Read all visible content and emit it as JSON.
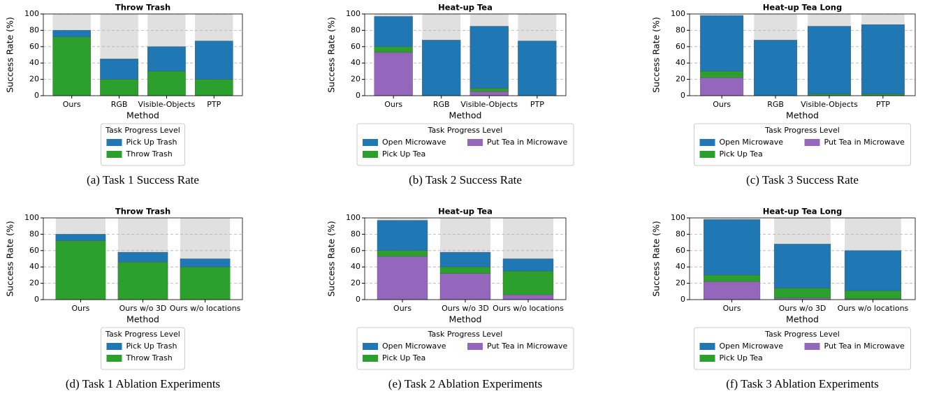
{
  "chart_data": [
    {
      "type": "bar",
      "title": "Throw Trash",
      "xlabel": "Method",
      "ylabel": "Success Rate (%)",
      "legend_title": "Task Progress Level",
      "caption": "(a) Task 1 Success Rate",
      "categories": [
        "Ours",
        "RGB",
        "Visible-Objects",
        "PTP"
      ],
      "series": [
        {
          "name": "Pick Up Trash",
          "color": "#1f77b4",
          "values": [
            8,
            25,
            30,
            47
          ]
        },
        {
          "name": "Throw Trash",
          "color": "#2ca02c",
          "values": [
            72,
            20,
            30,
            20
          ]
        }
      ],
      "ylim": [
        0,
        100
      ],
      "yticks": [
        0,
        20,
        40,
        60,
        80,
        100
      ],
      "grid": true
    },
    {
      "type": "bar",
      "title": "Heat-up Tea",
      "xlabel": "Method",
      "ylabel": "Success Rate (%)",
      "legend_title": "Task Progress Level",
      "caption": "(b) Task 2 Success Rate",
      "categories": [
        "Ours",
        "RGB",
        "Visible-Objects",
        "PTP"
      ],
      "series": [
        {
          "name": "Open Microwave",
          "color": "#1f77b4",
          "values": [
            37,
            68,
            76,
            67
          ]
        },
        {
          "name": "Pick Up Tea",
          "color": "#2ca02c",
          "values": [
            7,
            0,
            4,
            0
          ]
        },
        {
          "name": "Put Tea in Microwave",
          "color": "#9467bd",
          "values": [
            53,
            0,
            5,
            0
          ]
        }
      ],
      "ylim": [
        0,
        100
      ],
      "yticks": [
        0,
        20,
        40,
        60,
        80,
        100
      ],
      "grid": true
    },
    {
      "type": "bar",
      "title": "Heat-up Tea Long",
      "xlabel": "Method",
      "ylabel": "Success Rate (%)",
      "legend_title": "Task Progress Level",
      "caption": "(c) Task 3 Success Rate",
      "categories": [
        "Ours",
        "RGB",
        "Visible-Objects",
        "PTP"
      ],
      "series": [
        {
          "name": "Open Microwave",
          "color": "#1f77b4",
          "values": [
            68,
            68,
            83,
            85
          ]
        },
        {
          "name": "Pick Up Tea",
          "color": "#2ca02c",
          "values": [
            8,
            0,
            2,
            2
          ]
        },
        {
          "name": "Put Tea in Microwave",
          "color": "#9467bd",
          "values": [
            22,
            0,
            0,
            0
          ]
        }
      ],
      "ylim": [
        0,
        100
      ],
      "yticks": [
        0,
        20,
        40,
        60,
        80,
        100
      ],
      "grid": true
    },
    {
      "type": "bar",
      "title": "Throw Trash",
      "xlabel": "Method",
      "ylabel": "Success Rate (%)",
      "legend_title": "Task Progress Level",
      "caption": "(d) Task 1 Ablation Experiments",
      "categories": [
        "Ours",
        "Ours w/o 3D",
        "Ours w/o locations"
      ],
      "series": [
        {
          "name": "Pick Up Trash",
          "color": "#1f77b4",
          "values": [
            8,
            12,
            10
          ]
        },
        {
          "name": "Throw Trash",
          "color": "#2ca02c",
          "values": [
            72,
            46,
            40
          ]
        }
      ],
      "ylim": [
        0,
        100
      ],
      "yticks": [
        0,
        20,
        40,
        60,
        80,
        100
      ],
      "grid": true
    },
    {
      "type": "bar",
      "title": "Heat-up Tea",
      "xlabel": "Method",
      "ylabel": "Success Rate (%)",
      "legend_title": "Task Progress Level",
      "caption": "(e) Task 2 Ablation Experiments",
      "categories": [
        "Ours",
        "Ours w/o 3D",
        "Ours w/o locations"
      ],
      "series": [
        {
          "name": "Open Microwave",
          "color": "#1f77b4",
          "values": [
            37,
            18,
            15
          ]
        },
        {
          "name": "Pick Up Tea",
          "color": "#2ca02c",
          "values": [
            7,
            8,
            29
          ]
        },
        {
          "name": "Put Tea in Microwave",
          "color": "#9467bd",
          "values": [
            53,
            32,
            6
          ]
        }
      ],
      "ylim": [
        0,
        100
      ],
      "yticks": [
        0,
        20,
        40,
        60,
        80,
        100
      ],
      "grid": true
    },
    {
      "type": "bar",
      "title": "Heat-up Tea Long",
      "xlabel": "Method",
      "ylabel": "Success Rate (%)",
      "legend_title": "Task Progress Level",
      "caption": "(f) Task 3 Ablation Experiments",
      "categories": [
        "Ours",
        "Ours w/o 3D",
        "Ours w/o locations"
      ],
      "series": [
        {
          "name": "Open Microwave",
          "color": "#1f77b4",
          "values": [
            68,
            54,
            49
          ]
        },
        {
          "name": "Pick Up Tea",
          "color": "#2ca02c",
          "values": [
            8,
            12,
            10
          ]
        },
        {
          "name": "Put Tea in Microwave",
          "color": "#9467bd",
          "values": [
            22,
            2,
            1
          ]
        }
      ],
      "ylim": [
        0,
        100
      ],
      "yticks": [
        0,
        20,
        40,
        60,
        80,
        100
      ],
      "grid": true
    }
  ]
}
